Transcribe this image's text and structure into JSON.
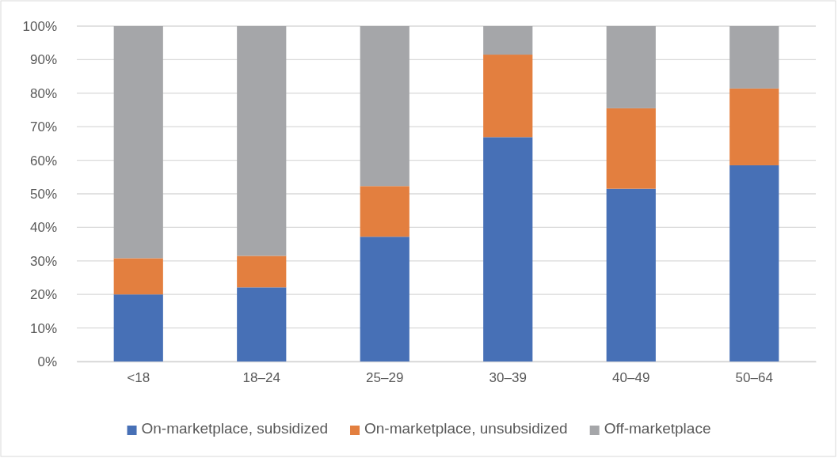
{
  "chart_data": {
    "type": "bar",
    "stacked": true,
    "categories": [
      "<18",
      "18–24",
      "25–29",
      "30–39",
      "40–49",
      "50–64"
    ],
    "series": [
      {
        "name": "On-marketplace, subsidized",
        "color": "#4770b6",
        "values": [
          20,
          22.1,
          37.2,
          66.9,
          51.5,
          58.5
        ]
      },
      {
        "name": "On-marketplace, unsubsidized",
        "color": "#e37f3f",
        "values": [
          10.8,
          9.4,
          15.1,
          24.6,
          24,
          22.9
        ]
      },
      {
        "name": "Off-marketplace",
        "color": "#a5a6a9",
        "values": [
          69.2,
          68.5,
          47.7,
          8.5,
          24.5,
          18.6
        ]
      }
    ],
    "ylim": [
      0,
      100
    ],
    "yticks": [
      {
        "value": 0,
        "label": "0%"
      },
      {
        "value": 10,
        "label": "10%"
      },
      {
        "value": 20,
        "label": "20%"
      },
      {
        "value": 30,
        "label": "30%"
      },
      {
        "value": 40,
        "label": "40%"
      },
      {
        "value": 50,
        "label": "50%"
      },
      {
        "value": 60,
        "label": "60%"
      },
      {
        "value": 70,
        "label": "70%"
      },
      {
        "value": 80,
        "label": "80%"
      },
      {
        "value": 90,
        "label": "90%"
      },
      {
        "value": 100,
        "label": "100%"
      }
    ],
    "grid": "y",
    "legend": "bottom"
  }
}
